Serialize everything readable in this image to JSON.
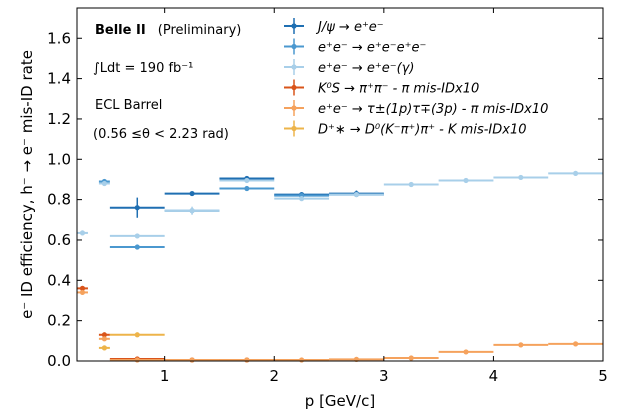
{
  "chart_data": {
    "type": "scatter",
    "xlabel": "p [GeV/c]",
    "ylabel": "e⁻ ID efficiency, h⁻ → e⁻ mis-ID rate",
    "xlim": [
      0.2,
      5.0
    ],
    "ylim": [
      0.0,
      1.75
    ],
    "xticks": [
      1,
      2,
      3,
      4,
      5
    ],
    "xtick_labels": [
      "1",
      "2",
      "3",
      "4",
      "5"
    ],
    "yticks": [
      0.0,
      0.2,
      0.4,
      0.6,
      0.8,
      1.0,
      1.2,
      1.4,
      1.6
    ],
    "ytick_labels": [
      "0.0",
      "0.2",
      "0.4",
      "0.6",
      "0.8",
      "1.0",
      "1.2",
      "1.4",
      "1.6"
    ],
    "annotations": [
      {
        "bold": "Belle II",
        "text": "(Preliminary)"
      },
      {
        "text": "∫Ldt =  190 fb⁻¹"
      },
      {
        "text": "ECL Barrel"
      },
      {
        "text": "(0.56  ≤θ <  2.23 rad)"
      }
    ],
    "legend_position": "top-right",
    "series": [
      {
        "name": "J/ψ → e⁺e⁻",
        "color": "#1f6fb2",
        "points": [
          {
            "x": 0.75,
            "xerr": 0.25,
            "y": 0.76,
            "yerr": 0.05
          },
          {
            "x": 1.25,
            "xerr": 0.25,
            "y": 0.83,
            "yerr": 0.01
          },
          {
            "x": 1.75,
            "xerr": 0.25,
            "y": 0.905,
            "yerr": 0.01
          },
          {
            "x": 2.25,
            "xerr": 0.25,
            "y": 0.825,
            "yerr": 0.01
          },
          {
            "x": 2.75,
            "xerr": 0.25,
            "y": 0.83,
            "yerr": 0.015
          }
        ]
      },
      {
        "name": "e⁺e⁻ → e⁺e⁻e⁺e⁻",
        "color": "#4b98cf",
        "points": [
          {
            "x": 0.45,
            "xerr": 0.05,
            "y": 0.89,
            "yerr": 0.01
          },
          {
            "x": 0.75,
            "xerr": 0.25,
            "y": 0.565,
            "yerr": 0.01
          },
          {
            "x": 1.25,
            "xerr": 0.25,
            "y": 0.745,
            "yerr": 0.01
          },
          {
            "x": 1.75,
            "xerr": 0.25,
            "y": 0.855,
            "yerr": 0.01
          },
          {
            "x": 2.25,
            "xerr": 0.25,
            "y": 0.82,
            "yerr": 0.01
          },
          {
            "x": 2.75,
            "xerr": 0.25,
            "y": 0.825,
            "yerr": 0.01
          }
        ]
      },
      {
        "name": "e⁺e⁻ → e⁺e⁻(γ)",
        "color": "#a8cfe9",
        "points": [
          {
            "x": 0.25,
            "xerr": 0.05,
            "y": 0.635,
            "yerr": 0.005
          },
          {
            "x": 0.45,
            "xerr": 0.05,
            "y": 0.88,
            "yerr": 0.005
          },
          {
            "x": 0.75,
            "xerr": 0.25,
            "y": 0.62,
            "yerr": 0.005
          },
          {
            "x": 1.25,
            "xerr": 0.25,
            "y": 0.745,
            "yerr": 0.02
          },
          {
            "x": 1.75,
            "xerr": 0.25,
            "y": 0.895,
            "yerr": 0.005
          },
          {
            "x": 2.25,
            "xerr": 0.25,
            "y": 0.805,
            "yerr": 0.005
          },
          {
            "x": 2.75,
            "xerr": 0.25,
            "y": 0.825,
            "yerr": 0.005
          },
          {
            "x": 3.25,
            "xerr": 0.25,
            "y": 0.875,
            "yerr": 0.005
          },
          {
            "x": 3.75,
            "xerr": 0.25,
            "y": 0.895,
            "yerr": 0.005
          },
          {
            "x": 4.25,
            "xerr": 0.25,
            "y": 0.91,
            "yerr": 0.005
          },
          {
            "x": 4.75,
            "xerr": 0.25,
            "y": 0.93,
            "yerr": 0.005
          }
        ]
      },
      {
        "name": "K⁰S → π⁺π⁻ - π mis-IDx10",
        "color": "#d9541a",
        "points": [
          {
            "x": 0.25,
            "xerr": 0.05,
            "y": 0.36,
            "yerr": 0.01
          },
          {
            "x": 0.45,
            "xerr": 0.05,
            "y": 0.13,
            "yerr": 0.005
          },
          {
            "x": 0.75,
            "xerr": 0.25,
            "y": 0.01,
            "yerr": 0.003
          },
          {
            "x": 1.25,
            "xerr": 0.25,
            "y": 0.005,
            "yerr": 0.002
          },
          {
            "x": 1.75,
            "xerr": 0.25,
            "y": 0.005,
            "yerr": 0.002
          }
        ]
      },
      {
        "name": "e⁺e⁻ → τ±(1p)τ∓(3p) - π mis-IDx10",
        "color": "#f5a25d",
        "points": [
          {
            "x": 0.25,
            "xerr": 0.05,
            "y": 0.34,
            "yerr": 0.01
          },
          {
            "x": 0.45,
            "xerr": 0.05,
            "y": 0.11,
            "yerr": 0.005
          },
          {
            "x": 0.75,
            "xerr": 0.25,
            "y": 0.005,
            "yerr": 0.002
          },
          {
            "x": 1.25,
            "xerr": 0.25,
            "y": 0.005,
            "yerr": 0.002
          },
          {
            "x": 1.75,
            "xerr": 0.25,
            "y": 0.005,
            "yerr": 0.002
          },
          {
            "x": 2.25,
            "xerr": 0.25,
            "y": 0.005,
            "yerr": 0.002
          },
          {
            "x": 2.75,
            "xerr": 0.25,
            "y": 0.008,
            "yerr": 0.002
          },
          {
            "x": 3.25,
            "xerr": 0.25,
            "y": 0.015,
            "yerr": 0.003
          },
          {
            "x": 3.75,
            "xerr": 0.25,
            "y": 0.045,
            "yerr": 0.003
          },
          {
            "x": 4.25,
            "xerr": 0.25,
            "y": 0.08,
            "yerr": 0.004
          },
          {
            "x": 4.75,
            "xerr": 0.25,
            "y": 0.085,
            "yerr": 0.004
          }
        ]
      },
      {
        "name": "D⁺∗ → D⁰(K⁻π⁺)π⁺ - K mis-IDx10",
        "color": "#edb44a",
        "points": [
          {
            "x": 0.45,
            "xerr": 0.05,
            "y": 0.065,
            "yerr": 0.005
          },
          {
            "x": 0.75,
            "xerr": 0.25,
            "y": 0.13,
            "yerr": 0.005
          }
        ]
      }
    ]
  }
}
